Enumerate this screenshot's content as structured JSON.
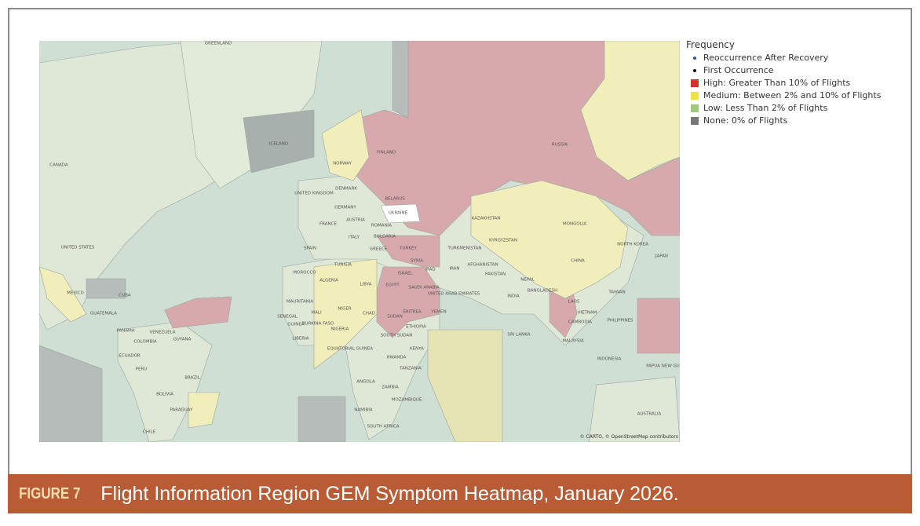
{
  "legend": {
    "title": "Frequency",
    "items": [
      {
        "name": "Reoccurrence After Recovery",
        "color": "#3b55a6",
        "symbol": "dot"
      },
      {
        "name": "First Occurrence",
        "color": "#111111",
        "symbol": "dot"
      },
      {
        "name": "High: Greater Than 10% of Flights",
        "color": "#d9312b",
        "symbol": "square"
      },
      {
        "name": "Medium: Between 2% and 10% of Flights",
        "color": "#f0e23c",
        "symbol": "square"
      },
      {
        "name": "Low: Less Than 2% of Flights",
        "color": "#9dc97a",
        "symbol": "square"
      },
      {
        "name": "None: 0% of Flights",
        "color": "#777777",
        "symbol": "square"
      }
    ]
  },
  "map_labels": [
    "GREENLAND",
    "ICELAND",
    "CANADA",
    "NORWAY",
    "FINLAND",
    "UNITED KINGDOM",
    "DENMARK",
    "GERMANY",
    "BELARUS",
    "UKRAINE",
    "FRANCE",
    "AUSTRIA",
    "ROMANIA",
    "ITALY",
    "BULGARIA",
    "SPAIN",
    "GREECE",
    "TURKEY",
    "RUSSIA",
    "KAZAKHSTAN",
    "MONGOLIA",
    "KYRGYZSTAN",
    "TURKMENISTAN",
    "NORTH KOREA",
    "JAPAN",
    "SYRIA",
    "CHINA",
    "AFGHANISTAN",
    "IRAQ",
    "IRAN",
    "ISRAEL",
    "PAKISTAN",
    "MOROCCO",
    "TUNISIA",
    "ALGERIA",
    "LIBYA",
    "EGYPT",
    "SAUDI ARABIA",
    "NEPAL",
    "BANGLADESH",
    "UNITED ARAB EMIRATES",
    "INDIA",
    "MEXICO",
    "CUBA",
    "MAURITANIA",
    "TAIWAN",
    "LAOS",
    "NIGER",
    "CHAD",
    "SUDAN",
    "ERITREA",
    "YEMEN",
    "GUATEMALA",
    "VIETNAM",
    "SENEGAL",
    "MALI",
    "BURKINA FASO",
    "CAMBODIA",
    "PHILIPPINES",
    "NIGERIA",
    "ETHIOPIA",
    "GUINEA",
    "PANAMA",
    "VENEZUELA",
    "SOUTH SUDAN",
    "SRI LANKA",
    "LIBERIA",
    "COLOMBIA",
    "GUYANA",
    "MALAYSIA",
    "EQUATORIAL GUINEA",
    "KENYA",
    "ECUADOR",
    "RWANDA",
    "INDONESIA",
    "TANZANIA",
    "PERU",
    "PAPUA NEW GUINEA",
    "BRAZIL",
    "ANGOLA",
    "ZAMBIA",
    "BOLIVIA",
    "MOZAMBIQUE",
    "NAMIBIA",
    "AUSTRALIA",
    "PARAGUAY",
    "SOUTH AFRICA",
    "CHILE",
    "UNITED STATES"
  ],
  "attribution": "© CARTO, © OpenStreetMap contributors",
  "caption": {
    "label": "FIGURE 7",
    "text": "Flight Information Region GEM Symptom Heatmap, January 2026."
  }
}
